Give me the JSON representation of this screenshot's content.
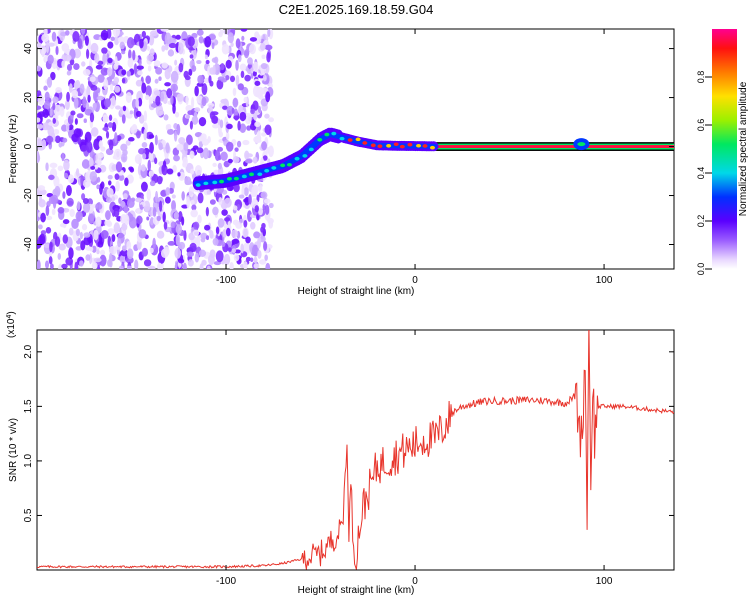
{
  "figure": {
    "title": "C2E1.2025.169.18.59.G04"
  },
  "colors": {
    "snr_line": "#e8352c",
    "axis": "#000000",
    "background": "#ffffff"
  },
  "chart_data": [
    {
      "type": "heatmap",
      "title": "",
      "xlabel": "Height of straight line (km)",
      "ylabel": "Frequency (Hz)",
      "xlim": [
        -200,
        137
      ],
      "ylim": [
        -50,
        48
      ],
      "xticks": [
        -100,
        0,
        100
      ],
      "yticks": [
        -40,
        -20,
        0,
        20,
        40
      ],
      "colorbar": {
        "label": "Normalized spectral amplitude",
        "range": [
          0,
          1
        ],
        "ticks": [
          0.0,
          0.2,
          0.4,
          0.6,
          0.8
        ],
        "colormap": "rainbow (white → violet → blue → cyan → green → yellow → red → magenta)"
      },
      "features": {
        "noise_region_x": [
          -200,
          -76
        ],
        "sweep_trace": {
          "x": [
            -115,
            -100,
            -85,
            -70,
            -60,
            -50,
            -45,
            -40,
            -35,
            -30,
            -20,
            -10,
            0,
            10
          ],
          "freq": [
            -15,
            -14,
            -11,
            -8,
            -4,
            3,
            5,
            4,
            3,
            2,
            0.5,
            0.3,
            0.2,
            0.1
          ]
        },
        "carrier_band": {
          "x": [
            10,
            137
          ],
          "freq": 0
        },
        "carrier_bump": {
          "x": 88,
          "freq": 1
        }
      }
    },
    {
      "type": "line",
      "title": "",
      "xlabel": "Height of straight line (km)",
      "ylabel": "SNR (10 * v/v)",
      "y_multiplier": "(x10^4)",
      "xlim": [
        -200,
        137
      ],
      "ylim": [
        0,
        2.2
      ],
      "xticks": [
        -100,
        0,
        100
      ],
      "yticks": [
        0.5,
        1.0,
        1.5,
        2.0
      ],
      "series": [
        {
          "x": [
            -200,
            -180,
            -160,
            -140,
            -120,
            -100,
            -80,
            -70,
            -60,
            -50,
            -45,
            -40,
            -38,
            -36,
            -35,
            -34,
            -33,
            -32,
            -31,
            -30,
            -28,
            -25,
            -22,
            -20,
            -15,
            -10,
            -5,
            0,
            5,
            10,
            15,
            20,
            25,
            30,
            35,
            40,
            50,
            60,
            70,
            80,
            85,
            88,
            90,
            91,
            92,
            93,
            94,
            95,
            97,
            100,
            110,
            120,
            130,
            137
          ],
          "values": [
            0.03,
            0.03,
            0.03,
            0.03,
            0.03,
            0.03,
            0.04,
            0.06,
            0.1,
            0.15,
            0.25,
            0.35,
            0.5,
            1.25,
            0.2,
            0.9,
            0.35,
            0.15,
            0.05,
            0.3,
            0.55,
            0.7,
            0.85,
            0.95,
            1.0,
            1.05,
            1.1,
            1.15,
            1.2,
            1.2,
            1.3,
            1.45,
            1.5,
            1.52,
            1.54,
            1.55,
            1.55,
            1.56,
            1.55,
            1.53,
            1.6,
            1.2,
            1.9,
            0.55,
            2.2,
            0.9,
            1.7,
            1.25,
            1.5,
            1.5,
            1.5,
            1.48,
            1.46,
            1.45
          ]
        }
      ]
    }
  ]
}
